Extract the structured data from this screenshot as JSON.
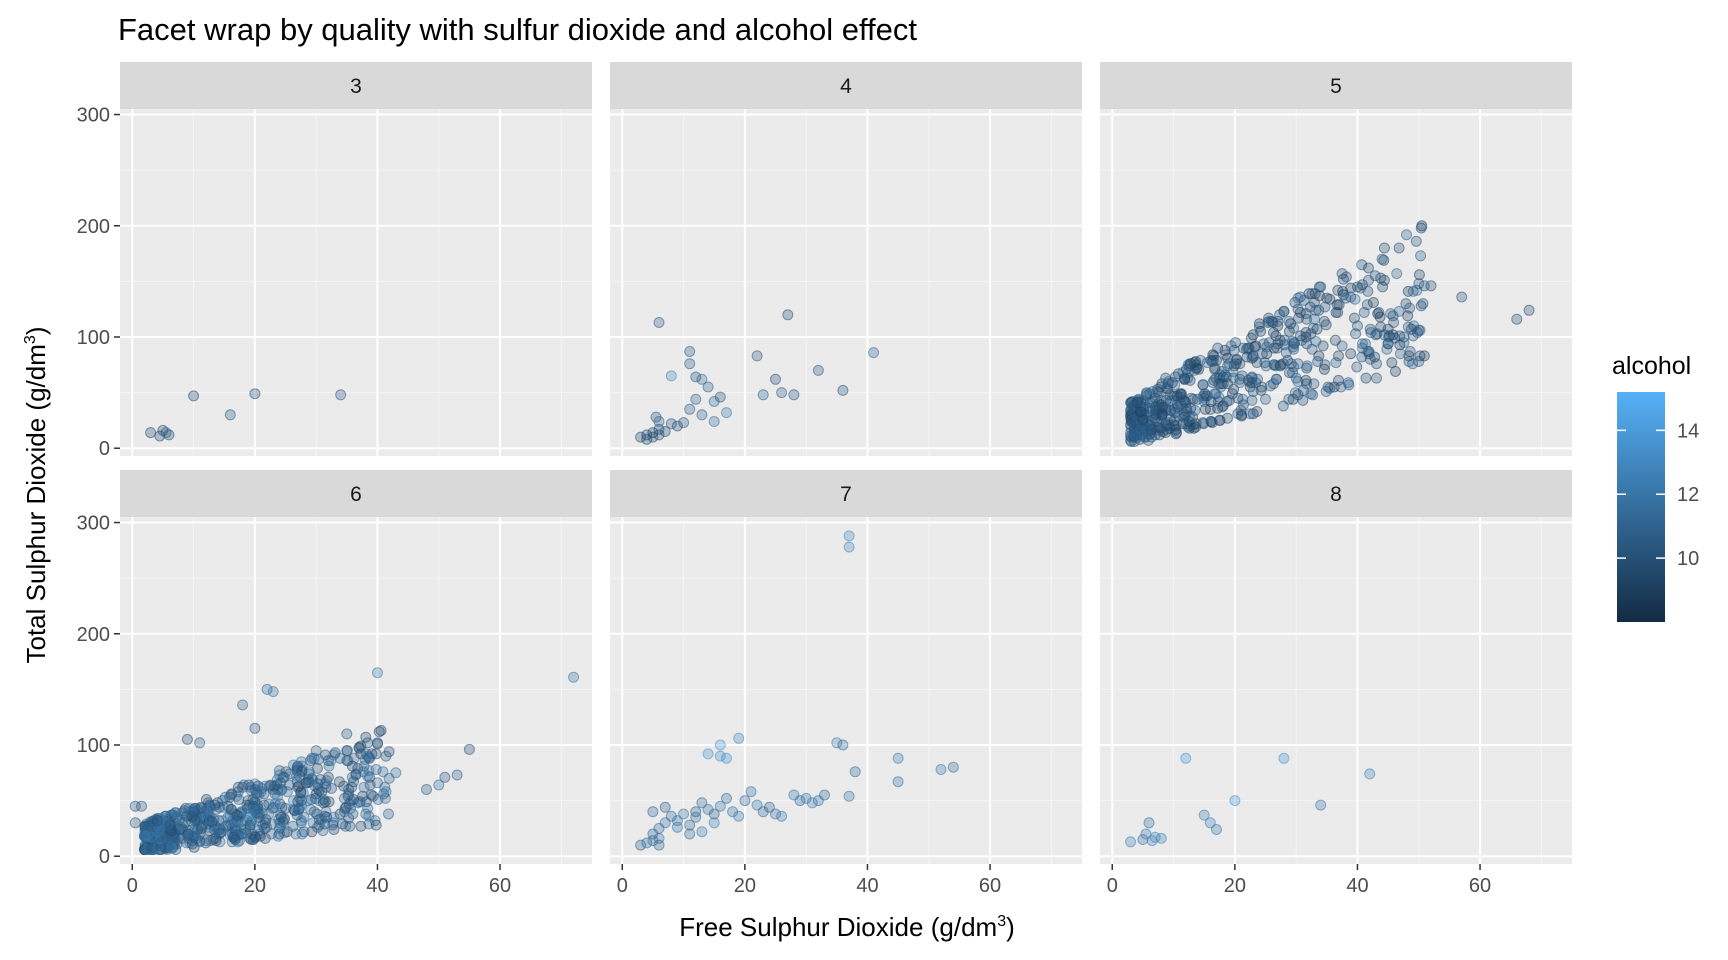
{
  "chart_data": {
    "type": "scatter",
    "title": "Facet wrap by quality with sulfur dioxide and alcohol effect",
    "xlabel": "Free Sulphur Dioxide",
    "ylabel": "Total Sulphur Dioxide",
    "unit": {
      "base": "g",
      "slash": "/",
      "denom": "dm",
      "exp": "3"
    },
    "xlim": [
      -2,
      75
    ],
    "ylim": [
      -7,
      305
    ],
    "x_ticks": [
      0,
      20,
      40,
      60
    ],
    "y_ticks": [
      0,
      100,
      200,
      300
    ],
    "x_tick_labels": [
      "0",
      "20",
      "40",
      "60"
    ],
    "y_tick_labels": [
      "0",
      "100",
      "200",
      "300"
    ],
    "grid": true,
    "legend": {
      "title": "alcohol",
      "placement": "right",
      "min": 8.0,
      "max": 15.2,
      "ticks": [
        10,
        12,
        14
      ],
      "tick_labels": [
        "10",
        "12",
        "14"
      ],
      "low_color": "#132B43",
      "high_color": "#56B1F7"
    },
    "facets": [
      {
        "label": "3",
        "points": [
          [
            3,
            14,
            9.6
          ],
          [
            5,
            16,
            9.8
          ],
          [
            4.5,
            11,
            9.9
          ],
          [
            6,
            12,
            10.0
          ],
          [
            5.5,
            14,
            10.4
          ],
          [
            10,
            47,
            9.9
          ],
          [
            16,
            30,
            10.5
          ],
          [
            20,
            49,
            10.2
          ],
          [
            34,
            48,
            10.6
          ]
        ]
      },
      {
        "label": "4",
        "points": [
          [
            3,
            10,
            9.6
          ],
          [
            4,
            8,
            9.8
          ],
          [
            4,
            12,
            9.9
          ],
          [
            5,
            10,
            10.0
          ],
          [
            5,
            14,
            9.4
          ],
          [
            6,
            12,
            10.1
          ],
          [
            6,
            17,
            9.8
          ],
          [
            7,
            15,
            10.2
          ],
          [
            8,
            22,
            10.5
          ],
          [
            5.5,
            28,
            10.6
          ],
          [
            6,
            24,
            11.0
          ],
          [
            6,
            113,
            10.8
          ],
          [
            8,
            65,
            13.0
          ],
          [
            10,
            23,
            10.5
          ],
          [
            11,
            35,
            10.8
          ],
          [
            11,
            87,
            10.7
          ],
          [
            11,
            76,
            10.9
          ],
          [
            12,
            44,
            11.2
          ],
          [
            13,
            62,
            11.6
          ],
          [
            13,
            30,
            11.0
          ],
          [
            14,
            55,
            10.9
          ],
          [
            15,
            42,
            11.4
          ],
          [
            16,
            46,
            10.4
          ],
          [
            15,
            24,
            11.8
          ],
          [
            17,
            32,
            12.1
          ],
          [
            22,
            83,
            10.6
          ],
          [
            23,
            48,
            11.0
          ],
          [
            25,
            62,
            10.2
          ],
          [
            26,
            50,
            10.8
          ],
          [
            27,
            120,
            10.2
          ],
          [
            28,
            48,
            10.5
          ],
          [
            32,
            70,
            10.6
          ],
          [
            36,
            52,
            10.3
          ],
          [
            41,
            86,
            11.2
          ],
          [
            12,
            64,
            10.4
          ],
          [
            9,
            20,
            10.1
          ]
        ]
      },
      {
        "label": "6",
        "points": [
          [
            0.5,
            30,
            10.2
          ],
          [
            0.5,
            45,
            10.3
          ],
          [
            1.5,
            45,
            10.8
          ],
          [
            72,
            161,
            11.9
          ],
          [
            40,
            165,
            12.2
          ],
          [
            55,
            96,
            9.8
          ],
          [
            30,
            95,
            10.8
          ],
          [
            35,
            110,
            10.6
          ]
        ]
      },
      {
        "label": "7",
        "points": [
          [
            3,
            10,
            11.0
          ],
          [
            4,
            12,
            11.5
          ],
          [
            5,
            14,
            11.8
          ],
          [
            5,
            20,
            11.2
          ],
          [
            6,
            16,
            12.0
          ],
          [
            6,
            25,
            11.5
          ],
          [
            7,
            30,
            11.9
          ],
          [
            5,
            40,
            11.3
          ],
          [
            7,
            44,
            11.0
          ],
          [
            9,
            32,
            11.7
          ],
          [
            10,
            38,
            12.2
          ],
          [
            11,
            28,
            11.4
          ],
          [
            12,
            35,
            11.8
          ],
          [
            13,
            48,
            11.6
          ],
          [
            14,
            42,
            12.0
          ],
          [
            15,
            38,
            11.3
          ],
          [
            16,
            45,
            12.1
          ],
          [
            17,
            52,
            11.5
          ],
          [
            18,
            40,
            11.9
          ],
          [
            19,
            36,
            12.3
          ],
          [
            20,
            50,
            11.4
          ],
          [
            21,
            58,
            11.8
          ],
          [
            22,
            46,
            12.1
          ],
          [
            23,
            40,
            11.6
          ],
          [
            24,
            44,
            11.2
          ],
          [
            25,
            38,
            12.0
          ],
          [
            26,
            36,
            12.4
          ],
          [
            28,
            55,
            12.2
          ],
          [
            29,
            50,
            11.5
          ],
          [
            30,
            52,
            11.9
          ],
          [
            31,
            48,
            12.6
          ],
          [
            32,
            50,
            12.0
          ],
          [
            33,
            55,
            11.4
          ],
          [
            35,
            102,
            12.6
          ],
          [
            36,
            100,
            11.5
          ],
          [
            37,
            54,
            12.1
          ],
          [
            38,
            76,
            11.4
          ],
          [
            37,
            288,
            13.2
          ],
          [
            37,
            278,
            13.0
          ],
          [
            45,
            88,
            12.4
          ],
          [
            45,
            67,
            11.9
          ],
          [
            52,
            78,
            12.2
          ],
          [
            54,
            80,
            11.8
          ],
          [
            14,
            92,
            13.6
          ],
          [
            16,
            90,
            13.3
          ],
          [
            17,
            88,
            13.5
          ],
          [
            16,
            100,
            13.8
          ],
          [
            19,
            106,
            13.2
          ],
          [
            12,
            40,
            11.0
          ],
          [
            8,
            36,
            11.6
          ],
          [
            9,
            26,
            12.0
          ],
          [
            11,
            20,
            11.8
          ],
          [
            13,
            22,
            12.4
          ],
          [
            15,
            30,
            12.7
          ],
          [
            6,
            10,
            11.2
          ]
        ]
      },
      {
        "label": "8",
        "points": [
          [
            3,
            13,
            12.6
          ],
          [
            5,
            15,
            12.0
          ],
          [
            5.5,
            20,
            12.3
          ],
          [
            6,
            30,
            11.6
          ],
          [
            6.5,
            14,
            12.8
          ],
          [
            7,
            17,
            13.0
          ],
          [
            8,
            16,
            12.5
          ],
          [
            12,
            88,
            13.8
          ],
          [
            15,
            37,
            12.4
          ],
          [
            16,
            30,
            12.7
          ],
          [
            17,
            24,
            12.2
          ],
          [
            20,
            50,
            13.5
          ],
          [
            28,
            88,
            13.6
          ],
          [
            34,
            46,
            12.1
          ],
          [
            42,
            74,
            12.6
          ]
        ]
      }
    ]
  }
}
